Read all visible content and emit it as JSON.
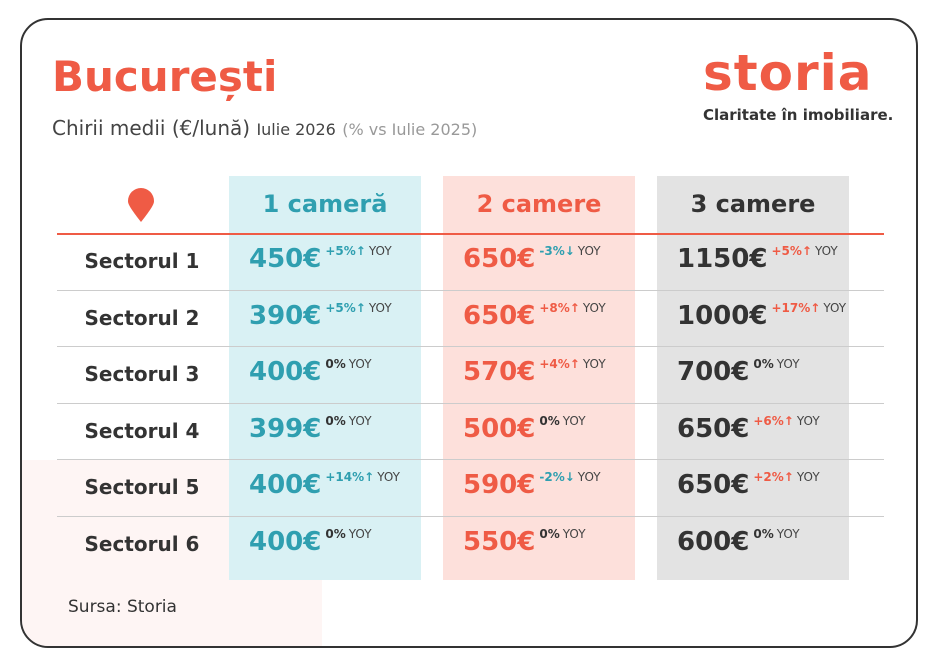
{
  "header": {
    "title": "București",
    "subtitle": "Chirii medii (€/lună)",
    "period": "Iulie 2026",
    "comparison": "(% vs Iulie 2025)"
  },
  "logo": {
    "name": "storia",
    "tagline": "Claritate în imobiliare."
  },
  "table": {
    "columns": [
      "1 cameră",
      "2 camere",
      "3 camere"
    ],
    "rows": [
      {
        "label": "Sectorul 1",
        "cells": [
          {
            "price": "450€",
            "change": "+5%↑",
            "yoy": "YOY"
          },
          {
            "price": "650€",
            "change": "-3%↓",
            "yoy": "YOY"
          },
          {
            "price": "1150€",
            "change": "+5%↑",
            "yoy": "YOY"
          }
        ]
      },
      {
        "label": "Sectorul 2",
        "cells": [
          {
            "price": "390€",
            "change": "+5%↑",
            "yoy": "YOY"
          },
          {
            "price": "650€",
            "change": "+8%↑",
            "yoy": "YOY"
          },
          {
            "price": "1000€",
            "change": "+17%↑",
            "yoy": "YOY"
          }
        ]
      },
      {
        "label": "Sectorul 3",
        "cells": [
          {
            "price": "400€",
            "change": "0%",
            "yoy": "YOY"
          },
          {
            "price": "570€",
            "change": "+4%↑",
            "yoy": "YOY"
          },
          {
            "price": "700€",
            "change": "0%",
            "yoy": "YOY"
          }
        ]
      },
      {
        "label": "Sectorul 4",
        "cells": [
          {
            "price": "399€",
            "change": "0%",
            "yoy": "YOY"
          },
          {
            "price": "500€",
            "change": "0%",
            "yoy": "YOY"
          },
          {
            "price": "650€",
            "change": "+6%↑",
            "yoy": "YOY"
          }
        ]
      },
      {
        "label": "Sectorul 5",
        "cells": [
          {
            "price": "400€",
            "change": "+14%↑",
            "yoy": "YOY"
          },
          {
            "price": "590€",
            "change": "-2%↓",
            "yoy": "YOY"
          },
          {
            "price": "650€",
            "change": "+2%↑",
            "yoy": "YOY"
          }
        ]
      },
      {
        "label": "Sectorul 6",
        "cells": [
          {
            "price": "400€",
            "change": "0%",
            "yoy": "YOY"
          },
          {
            "price": "550€",
            "change": "0%",
            "yoy": "YOY"
          },
          {
            "price": "600€",
            "change": "0%",
            "yoy": "YOY"
          }
        ]
      }
    ]
  },
  "source": "Sursa: Storia"
}
